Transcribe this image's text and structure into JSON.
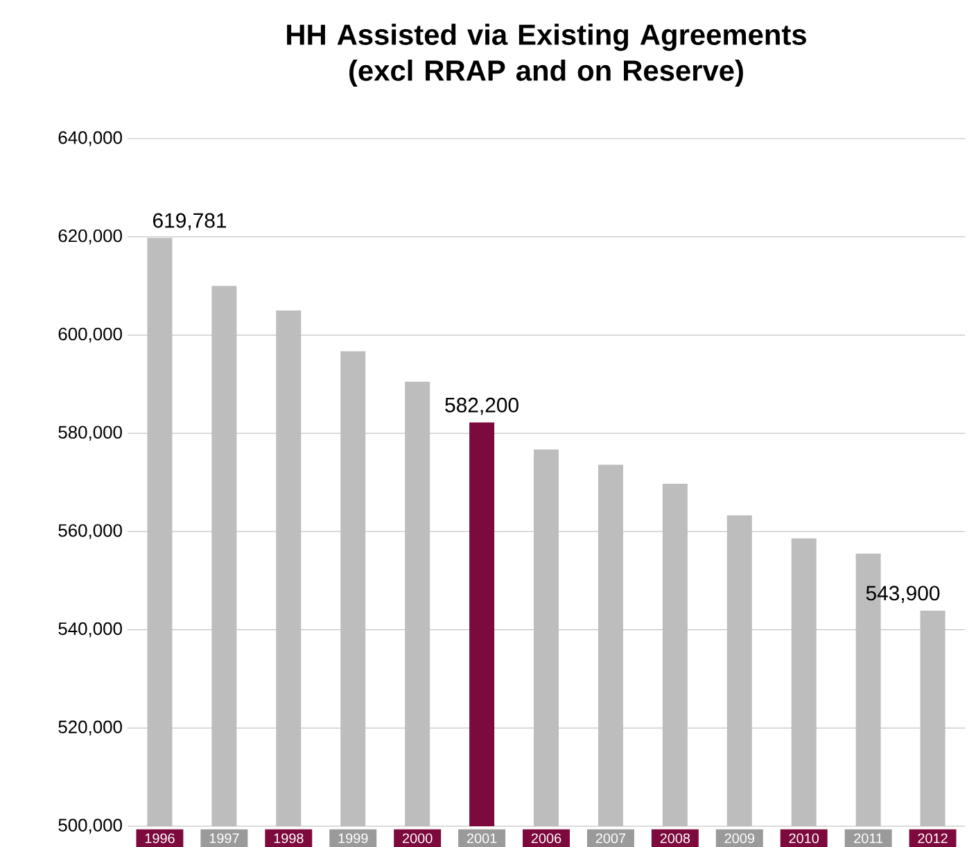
{
  "chart_data": {
    "type": "bar",
    "title": "HH Assisted via Existing Agreements (excl RRAP and on Reserve)",
    "categories": [
      "1996",
      "1997",
      "1998",
      "1999",
      "2000",
      "2001",
      "2006",
      "2007",
      "2008",
      "2009",
      "2010",
      "2011",
      "2012"
    ],
    "values": [
      619781,
      610000,
      605000,
      596700,
      590500,
      582200,
      576700,
      573600,
      569700,
      563300,
      558600,
      555500,
      543900
    ],
    "colors": [
      "#bdbdbd",
      "#bdbdbd",
      "#bdbdbd",
      "#bdbdbd",
      "#bdbdbd",
      "#7d0a3c",
      "#bdbdbd",
      "#bdbdbd",
      "#bdbdbd",
      "#bdbdbd",
      "#bdbdbd",
      "#bdbdbd",
      "#bdbdbd"
    ],
    "value_labels": [
      "619,781",
      null,
      null,
      null,
      null,
      "582,200",
      null,
      null,
      null,
      null,
      null,
      null,
      "543,900"
    ],
    "ylim": [
      500000,
      640000
    ],
    "yticks": [
      {
        "value": 500000,
        "label": "500,000"
      },
      {
        "value": 520000,
        "label": "520,000"
      },
      {
        "value": 540000,
        "label": "540,000"
      },
      {
        "value": 560000,
        "label": "560,000"
      },
      {
        "value": 580000,
        "label": "580,000"
      },
      {
        "value": 600000,
        "label": "600,000"
      },
      {
        "value": 620000,
        "label": "620,000"
      },
      {
        "value": 640000,
        "label": "640,000"
      }
    ],
    "grid": "y"
  }
}
